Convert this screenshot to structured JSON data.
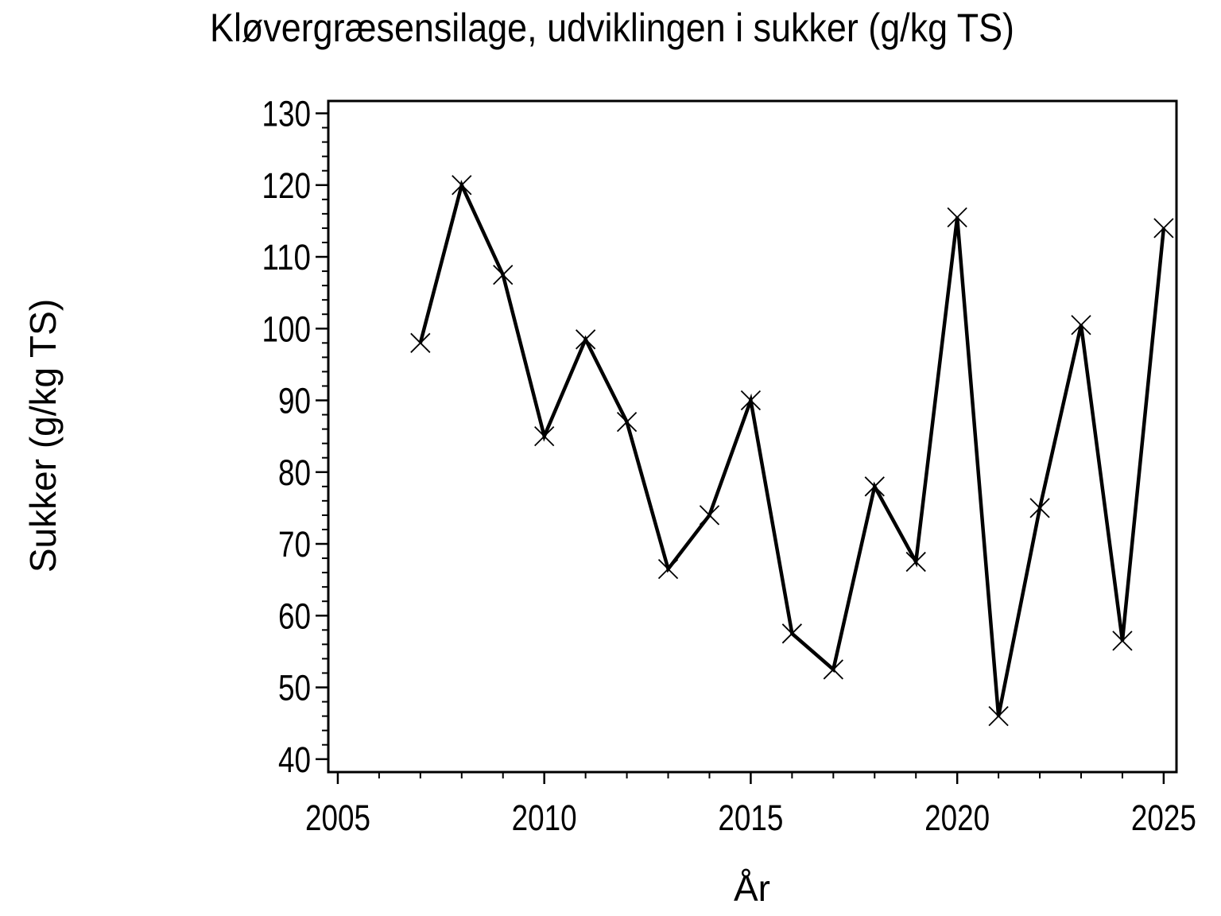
{
  "chart_data": {
    "type": "line",
    "title": "Kløvergræsensilage, udviklingen i sukker (g/kg TS)",
    "xlabel": "År",
    "ylabel": "Sukker (g/kg TS)",
    "x": [
      2007,
      2008,
      2009,
      2010,
      2011,
      2012,
      2013,
      2014,
      2015,
      2016,
      2017,
      2018,
      2019,
      2020,
      2021,
      2022,
      2023,
      2024,
      2025
    ],
    "values": [
      98,
      120,
      107.5,
      85,
      98.5,
      87,
      66.5,
      74,
      90,
      57.5,
      52.5,
      78,
      67.5,
      115.5,
      46,
      75,
      100.5,
      56.5,
      114
    ],
    "xlim": [
      2004.77,
      2025.31
    ],
    "ylim": [
      38.2,
      131.72
    ],
    "x_major_ticks": [
      2005,
      2010,
      2015,
      2020,
      2025
    ],
    "x_minor_tick_step": 1,
    "y_major_ticks": [
      40,
      50,
      60,
      70,
      80,
      90,
      100,
      110,
      120,
      130
    ],
    "y_minor_tick_step": 2,
    "marker": "x",
    "grid": false,
    "legend_position": "none",
    "colors": {
      "line": "#000000",
      "marker": "#000000",
      "axis": "#000000",
      "text": "#000000",
      "background": "#ffffff"
    }
  }
}
